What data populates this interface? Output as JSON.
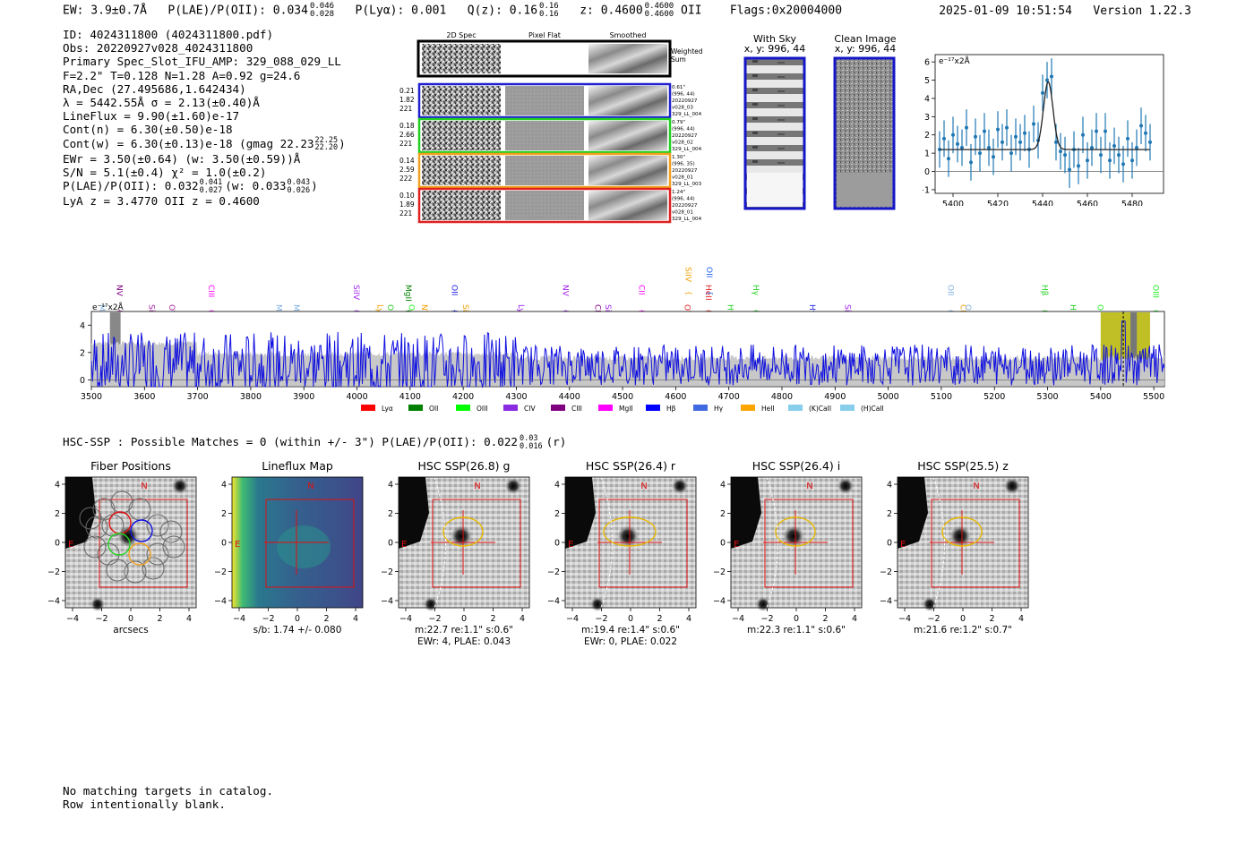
{
  "header": {
    "ew": "EW: 3.9±0.7Å",
    "plae": "P(LAE)/P(OII): 0.034",
    "plae_hi": "0.046",
    "plae_lo": "0.028",
    "plya": "P(Lyα): 0.001",
    "qz": "Q(z): 0.16",
    "qz_hi": "0.16",
    "qz_lo": "0.16",
    "z": "z: 0.4600",
    "z_hi": "0.4600",
    "z_lo": "0.4600",
    "z_line": "OII",
    "flags": "Flags:0x20004000",
    "timestamp": "2025-01-09 10:51:54",
    "version": "Version 1.22.3"
  },
  "info": {
    "lines": [
      "ID: 4024311800 (4024311800.pdf)",
      "Obs: 20220927v028_4024311800",
      "Primary Spec_Slot_IFU_AMP: 329_088_029_LL",
      "F=2.2\"  T=0.128  N=1.28  A=0.92  g=24.6",
      "RA,Dec (27.495686,1.642434)",
      "λ = 5442.55Å  σ = 2.13(±0.40)Å",
      "LineFlux = 9.90(±1.60)e-17",
      "Cont(n) = 6.30(±0.50)e-18",
      "Cont(w) = 6.30(±0.13)e-18 (gmag 22.23",
      "EWr = 3.50(±0.64) (w: 3.50(±0.59))Å",
      "S/N = 5.1(±0.4)  χ² = 1.0(±0.2)",
      "P(LAE)/P(OII): 0.032",
      "LyA z = 3.4770  OII z = 0.4600"
    ],
    "gmag_hi": "22.25",
    "gmag_lo": "22.20",
    "plae2_hi": "0.041",
    "plae2_lo": "0.027",
    "plae2_tail": "(w: 0.033",
    "plae2w_hi": "0.043",
    "plae2w_lo": "0.026",
    "plae2_end": ")"
  },
  "cutouts": {
    "col_titles": [
      "2D Spec",
      "Pixel Flat",
      "Smoothed"
    ],
    "weighted_label": "Weighted\nSum",
    "rows": [
      {
        "vals": [
          "0.21",
          "1.82",
          "221"
        ],
        "side": [
          "0.61\"",
          "(996, 44)",
          "20220927",
          "v028_03",
          "329_LL_004"
        ],
        "color": "#1f1fd0"
      },
      {
        "vals": [
          "0.18",
          "2.66",
          "221"
        ],
        "side": [
          "0.79\"",
          "(996, 44)",
          "20220927",
          "v028_02",
          "329_LL_004"
        ],
        "color": "#20d020"
      },
      {
        "vals": [
          "0.14",
          "2.59",
          "222"
        ],
        "side": [
          "1.30\"",
          "(996, 35)",
          "20220927",
          "v028_01",
          "329_LL_003"
        ],
        "color": "#f0a020"
      },
      {
        "vals": [
          "0.10",
          "1.89",
          "221"
        ],
        "side": [
          "1.24\"",
          "(996, 44)",
          "20220927",
          "v028_01",
          "329_LL_004"
        ],
        "color": "#e02020"
      }
    ],
    "with_sky_title": "With Sky",
    "with_sky_xy": "x, y: 996, 44",
    "clean_title": "Clean Image",
    "clean_xy": "x, y: 996, 44"
  },
  "chart_data": [
    {
      "type": "line",
      "name_ref": "line-fit",
      "ylabel": "e⁻¹⁷x2Å",
      "xlim": [
        5392,
        5494
      ],
      "ylim": [
        -1.2,
        6.4
      ],
      "xticks": [
        5400,
        5420,
        5440,
        5460,
        5480
      ],
      "yticks": [
        -1,
        0,
        1,
        2,
        3,
        4,
        5,
        6
      ],
      "x": [
        5394,
        5396,
        5398,
        5400,
        5402,
        5404,
        5406,
        5408,
        5410,
        5412,
        5414,
        5416,
        5418,
        5420,
        5422,
        5424,
        5426,
        5428,
        5430,
        5432,
        5434,
        5436,
        5438,
        5440,
        5442,
        5444,
        5446,
        5448,
        5450,
        5452,
        5454,
        5456,
        5458,
        5460,
        5462,
        5464,
        5466,
        5468,
        5470,
        5472,
        5474,
        5476,
        5478,
        5480,
        5482,
        5484,
        5486,
        5488
      ],
      "y": [
        1.2,
        1.8,
        0.7,
        2.0,
        1.5,
        1.3,
        2.4,
        0.5,
        1.9,
        1.0,
        2.2,
        1.3,
        0.8,
        2.3,
        1.6,
        2.4,
        1.0,
        1.9,
        1.6,
        2.1,
        1.2,
        2.6,
        1.7,
        4.3,
        5.0,
        5.2,
        1.6,
        1.1,
        0.9,
        0.1,
        1.2,
        0.3,
        2.0,
        0.6,
        1.3,
        2.2,
        0.9,
        2.2,
        0.6,
        1.4,
        0.9,
        0.4,
        1.8,
        0.6,
        1.3,
        2.5,
        2.1,
        1.6
      ],
      "yerr": 1.0,
      "fit": {
        "continuum": 1.2,
        "center": 5442.5,
        "sigma": 2.13,
        "amplitude": 3.7
      },
      "zero_line": 0
    },
    {
      "type": "line",
      "name_ref": "full-spectrum",
      "ylabel": "e⁻¹⁷x2Å",
      "xlim": [
        3500,
        5520
      ],
      "ylim": [
        -0.5,
        5.0
      ],
      "xticks": [
        3500,
        3600,
        3700,
        3800,
        3900,
        4000,
        4100,
        4200,
        4300,
        4400,
        4500,
        4600,
        4700,
        4800,
        4900,
        5000,
        5100,
        5200,
        5300,
        5400,
        5500
      ],
      "yticks": [
        0,
        2,
        4
      ],
      "line_marks": [
        {
          "label": "MgII",
          "x": 3510,
          "color": "#7db0e0"
        },
        {
          "label": "NV",
          "x": 3543,
          "color": "#800080"
        },
        {
          "label": "SiII",
          "x": 3604,
          "color": "#a020a0"
        },
        {
          "label": "OVI",
          "x": 3642,
          "color": "#a020a0"
        },
        {
          "label": "CIII",
          "x": 3716,
          "color": "#ff00ff"
        },
        {
          "label": "MgII",
          "x": 3843,
          "color": "#7db0e0"
        },
        {
          "label": "MgII",
          "x": 3876,
          "color": "#7db0e0"
        },
        {
          "label": "SiIV",
          "x": 3989,
          "color": "#a020f0"
        },
        {
          "label": "Lyα",
          "x": 4034,
          "color": "#f0a000"
        },
        {
          "label": "OII",
          "x": 4053,
          "color": "#20d020"
        },
        {
          "label": "MgII",
          "x": 4087,
          "color": "#008000"
        },
        {
          "label": "OIII",
          "x": 4093,
          "color": "#20f020"
        },
        {
          "label": "NV",
          "x": 4117,
          "color": "#f0a000"
        },
        {
          "label": "OII",
          "x": 4174,
          "color": "#2020f0"
        },
        {
          "label": "SiII",
          "x": 4195,
          "color": "#f0a000"
        },
        {
          "label": "Lyα",
          "x": 4299,
          "color": "#a020f0"
        },
        {
          "label": "NV",
          "x": 4383,
          "color": "#a020f0"
        },
        {
          "label": "CIV",
          "x": 4443,
          "color": "#800080"
        },
        {
          "label": "SiII",
          "x": 4463,
          "color": "#a020f0"
        },
        {
          "label": "CII",
          "x": 4526,
          "color": "#ff00ff"
        },
        {
          "label": "OVI",
          "x": 4612,
          "color": "#e02020"
        },
        {
          "label": "SiIV",
          "x": 4614,
          "color": "#f0a000"
        },
        {
          "label": "HeII",
          "x": 4652,
          "color": "#e02020"
        },
        {
          "label": "OII",
          "x": 4653,
          "color": "#2060f0"
        },
        {
          "label": "Hγ",
          "x": 4693,
          "color": "#20d020"
        },
        {
          "label": "Hγ",
          "x": 4741,
          "color": "#20d020"
        },
        {
          "label": "Hγ",
          "x": 4847,
          "color": "#2020f0"
        },
        {
          "label": "SiIV",
          "x": 4914,
          "color": "#a020f0"
        },
        {
          "label": "OII",
          "x": 5108,
          "color": "#7db0e0"
        },
        {
          "label": "CIV",
          "x": 5131,
          "color": "#f0a000"
        },
        {
          "label": "OII",
          "x": 5141,
          "color": "#7db0e0"
        },
        {
          "label": "Hβ",
          "x": 5285,
          "color": "#20d020"
        },
        {
          "label": "Hβ",
          "x": 5338,
          "color": "#20d020"
        },
        {
          "label": "OIII",
          "x": 5389,
          "color": "#20f020"
        },
        {
          "label": "OIII",
          "x": 5494,
          "color": "#20f020"
        }
      ],
      "highlight_band": [
        5400,
        5493
      ],
      "marked_line": 5442.55,
      "legend": [
        {
          "label": "Lyα",
          "color": "#ff0000"
        },
        {
          "label": "OII",
          "color": "#008000"
        },
        {
          "label": "OIII",
          "color": "#00ff00"
        },
        {
          "label": "CIV",
          "color": "#8a2be2"
        },
        {
          "label": "CIII",
          "color": "#800080"
        },
        {
          "label": "MgII",
          "color": "#ff00ff"
        },
        {
          "label": "Hβ",
          "color": "#0000ff"
        },
        {
          "label": "Hγ",
          "color": "#4169e1"
        },
        {
          "label": "HeII",
          "color": "#ffa500"
        },
        {
          "label": "(K)CaII",
          "color": "#87ceeb"
        },
        {
          "label": "(H)CaII",
          "color": "#87ceeb"
        }
      ]
    }
  ],
  "hsc": {
    "header": "HSC-SSP : Possible Matches = 0 (within +/- 3\")  P(LAE)/P(OII): 0.022",
    "plae_hi": "0.03",
    "plae_lo": "0.016",
    "band": "(r)",
    "panels": [
      {
        "title": "Fiber Positions",
        "notes": [
          "arcsecs"
        ]
      },
      {
        "title": "Lineflux Map",
        "notes": [
          "s/b: 1.74 +/- 0.080"
        ]
      },
      {
        "title": "HSC SSP(26.8) g",
        "notes": [
          "m:22.7  re:1.1\"  s:0.6\"",
          "EWr: 4, PLAE: 0.043"
        ]
      },
      {
        "title": "HSC SSP(26.4) r",
        "notes": [
          "m:19.4  re:1.4\"  s:0.6\"",
          "EWr: 0, PLAE: 0.022"
        ]
      },
      {
        "title": "HSC SSP(26.4) i",
        "notes": [
          "m:22.3  re:1.1\"  s:0.6\""
        ]
      },
      {
        "title": "HSC SSP(25.5) z",
        "notes": [
          "m:21.6  re:1.2\"  s:0.7\""
        ]
      }
    ],
    "axis_ticks": [
      "−4",
      "−2",
      "0",
      "2",
      "4"
    ],
    "compass_n": "N",
    "compass_e": "E"
  },
  "footer": {
    "line1": "No matching targets in catalog.",
    "line2": "Row intentionally blank."
  }
}
